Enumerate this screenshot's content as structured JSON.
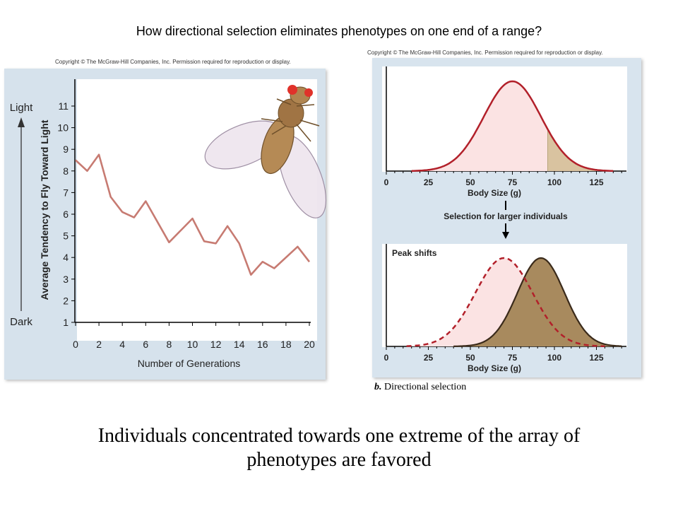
{
  "slide": {
    "title": "How directional selection eliminates phenotypes on one end of a range?",
    "caption_line1": "Individuals concentrated towards one extreme of the array of",
    "caption_line2": "phenotypes are favored"
  },
  "figure_left": {
    "copyright": "Copyright © The McGraw-Hill Companies, Inc. Permission required for reproduction or display.",
    "light_label": "Light",
    "dark_label": "Dark",
    "line_color": "#c77b72"
  },
  "figure_right": {
    "copyright": "Copyright © The McGraw-Hill Companies, Inc. Permission required for reproduction or display.",
    "arrow_label": "Selection for larger individuals",
    "inset_label": "Peak shifts",
    "panel_letter": "b.",
    "panel_caption": "Directional selection",
    "colors": {
      "curve": "#b2202a",
      "fill_pink": "#fbe3e3",
      "fill_tan": "#d9c3a0",
      "fill_brown": "#a88a5e"
    }
  },
  "chart_data": [
    {
      "type": "line",
      "xlabel": "Number of Generations",
      "ylabel": "Average Tendency to Fly Toward Light",
      "xlim": [
        0,
        20
      ],
      "ylim": [
        1,
        11.5
      ],
      "xticks": [
        0,
        2,
        4,
        6,
        8,
        10,
        12,
        14,
        16,
        18,
        20
      ],
      "yticks": [
        1,
        2,
        3,
        4,
        5,
        6,
        7,
        8,
        9,
        10,
        11
      ],
      "x": [
        0,
        1,
        2,
        3,
        4,
        5,
        6,
        8,
        10,
        11,
        12,
        13,
        14,
        15,
        16,
        17,
        19,
        20
      ],
      "y": [
        8.5,
        8.0,
        8.75,
        6.8,
        6.1,
        5.85,
        6.6,
        4.7,
        5.8,
        4.75,
        4.65,
        5.45,
        4.65,
        3.2,
        3.8,
        3.5,
        4.5,
        3.8
      ]
    },
    {
      "type": "area",
      "xlabel": "Body Size (g)",
      "xlim": [
        0,
        150
      ],
      "xticks": [
        0,
        25,
        50,
        75,
        100,
        125
      ],
      "mean": 75,
      "sd": 17,
      "highlight_from": 96
    },
    {
      "type": "area",
      "xlabel": "Body Size (g)",
      "xlim": [
        0,
        150
      ],
      "xticks": [
        0,
        25,
        50,
        75,
        100,
        125
      ],
      "series": [
        {
          "name": "",
          "mean": 70,
          "sd": 17,
          "style": "dashed"
        },
        {
          "name": "",
          "mean": 92,
          "sd": 14,
          "style": "filled"
        }
      ]
    }
  ]
}
